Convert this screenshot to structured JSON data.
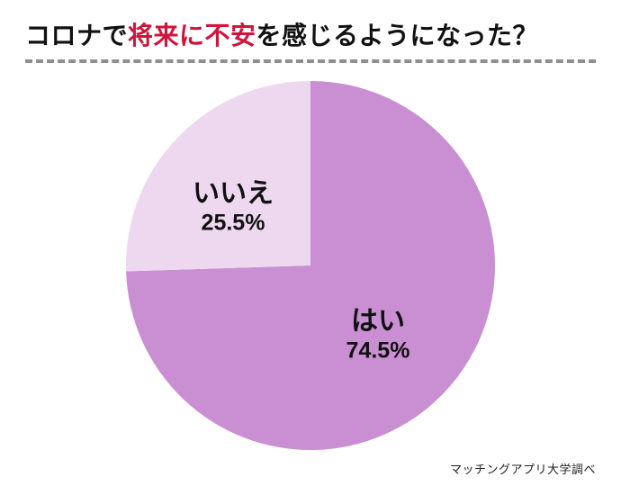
{
  "header": {
    "title_parts": [
      {
        "text": "コロナで",
        "color": "#111111"
      },
      {
        "text": "将来に不安",
        "color": "#d0143c"
      },
      {
        "text": "を感じるようになった？",
        "color": "#111111"
      }
    ],
    "divider_color": "#8f8f8f"
  },
  "chart_data": {
    "type": "pie",
    "title": "コロナで将来に不安を感じるようになった？",
    "start_angle_deg": 0,
    "direction": "clockwise",
    "legend": "none",
    "labels_inside": true,
    "slices": [
      {
        "label": "はい",
        "value": 74.5,
        "display": "74.5%",
        "color": "#c98fd2"
      },
      {
        "label": "いいえ",
        "value": 25.5,
        "display": "25.5%",
        "color": "#eed8ef"
      }
    ]
  },
  "footer": {
    "source": "マッチングアプリ大学調べ"
  }
}
